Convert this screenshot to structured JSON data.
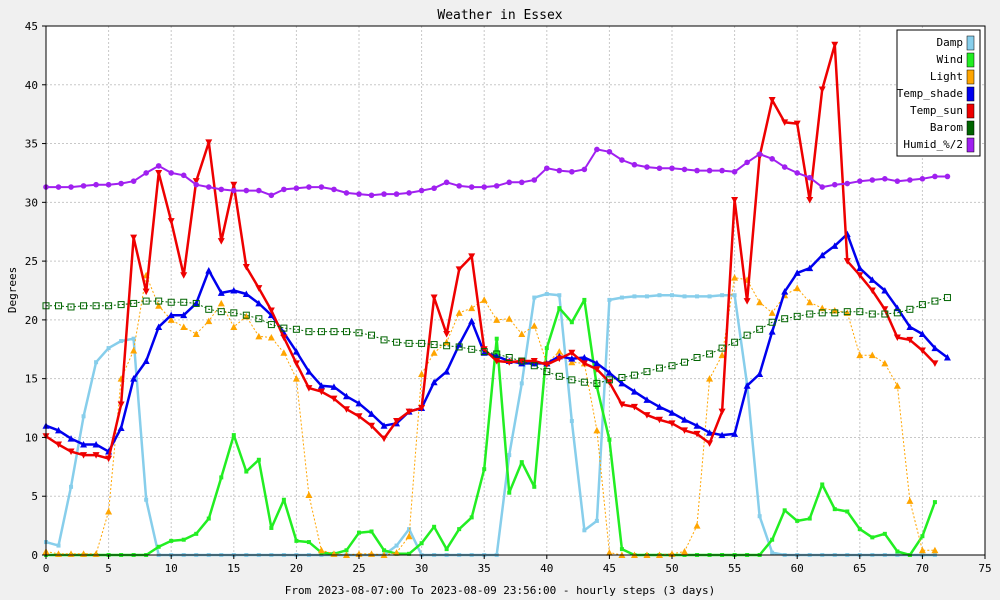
{
  "chart_data": {
    "type": "line",
    "title": "Weather in Essex",
    "xlabel": "From 2023-08-07:00 To 2023-08-09 23:56:00 - hourly steps (3 days)",
    "ylabel": "Degrees",
    "xlim": [
      0,
      75
    ],
    "ylim": [
      0,
      45
    ],
    "xticks": [
      0,
      5,
      10,
      15,
      20,
      25,
      30,
      35,
      40,
      45,
      50,
      55,
      60,
      65,
      70,
      75
    ],
    "yticks": [
      0,
      5,
      10,
      15,
      20,
      25,
      30,
      35,
      40,
      45
    ],
    "grid": true,
    "legend_position": "top-right",
    "series": [
      {
        "name": "Damp",
        "color": "#87ceeb",
        "marker": "square",
        "values": [
          1.1,
          0.8,
          5.8,
          11.8,
          16.4,
          17.6,
          18.2,
          18.4,
          4.7,
          0,
          0,
          0,
          0,
          0,
          0,
          0,
          0,
          0,
          0,
          0,
          0,
          0,
          0,
          0,
          0,
          0,
          0,
          0,
          0.8,
          2.2,
          0,
          0,
          0,
          0,
          0,
          0,
          0,
          8.5,
          14.6,
          21.9,
          22.2,
          22.1,
          11.4,
          2.1,
          2.9,
          21.7,
          21.9,
          22,
          22,
          22.1,
          22.1,
          22,
          22,
          22,
          22.1,
          22.1,
          14.5,
          3.3,
          0.2,
          0,
          0,
          0,
          0,
          0,
          0,
          0,
          0,
          0,
          0,
          0,
          0,
          0
        ]
      },
      {
        "name": "Wind",
        "color": "#22ee22",
        "marker": "square",
        "values": [
          0,
          0,
          0,
          0,
          0,
          0,
          0,
          0,
          0,
          0.7,
          1.2,
          1.3,
          1.8,
          3.1,
          6.6,
          10.2,
          7.1,
          8.1,
          2.3,
          4.7,
          1.2,
          1.1,
          0.2,
          0.1,
          0.4,
          1.9,
          2,
          0.4,
          0.1,
          0.1,
          1,
          2.4,
          0.5,
          2.2,
          3.2,
          7.3,
          18.4,
          5.3,
          7.9,
          5.8,
          17.6,
          21,
          19.8,
          21.7,
          14.3,
          9.8,
          0.5,
          0,
          0,
          0,
          0,
          0,
          0,
          0,
          0,
          0,
          0,
          0,
          1.3,
          3.8,
          2.9,
          3.1,
          6,
          3.9,
          3.7,
          2.2,
          1.5,
          1.8,
          0.3,
          0,
          1.6,
          4.5
        ]
      },
      {
        "name": "Light",
        "color": "#ffa500",
        "marker": "triangle",
        "values": [
          0.3,
          0.1,
          0.1,
          0.1,
          0.1,
          3.7,
          15,
          17.4,
          23.8,
          21.2,
          20,
          19.4,
          18.8,
          19.9,
          21.4,
          19.4,
          20.3,
          18.6,
          18.5,
          17.2,
          15,
          5.1,
          0.4,
          0.1,
          0,
          0.1,
          0.1,
          0,
          0.2,
          1.6,
          15.4,
          17.2,
          18.1,
          20.6,
          21,
          21.7,
          20,
          20.1,
          18.8,
          19.5,
          16.3,
          17.3,
          16.4,
          16.3,
          10.6,
          0.2,
          0,
          0,
          0,
          0,
          0.1,
          0.3,
          2.5,
          15,
          17,
          23.6,
          23.4,
          21.5,
          20.6,
          22.1,
          22.7,
          21.5,
          21,
          20.8,
          20.6,
          17,
          17,
          16.3,
          14.4,
          4.6,
          0.4,
          0.4
        ]
      },
      {
        "name": "Temp_shade",
        "color": "#0000ee",
        "marker": "triangle",
        "values": [
          11,
          10.6,
          9.9,
          9.4,
          9.4,
          8.8,
          10.8,
          15,
          16.5,
          19.4,
          20.4,
          20.4,
          21.4,
          24.2,
          22.3,
          22.5,
          22.2,
          21.4,
          20.4,
          18.9,
          17.3,
          15.6,
          14.4,
          14.3,
          13.5,
          12.9,
          12,
          11,
          11.2,
          12.2,
          12.5,
          14.7,
          15.6,
          17.9,
          19.9,
          17.2,
          16.9,
          16.5,
          16.3,
          16.3,
          16.3,
          16.9,
          16.7,
          16.8,
          16.3,
          15.5,
          14.6,
          13.9,
          13.2,
          12.6,
          12.1,
          11.5,
          11,
          10.4,
          10.2,
          10.3,
          14.4,
          15.4,
          19,
          22.4,
          24,
          24.4,
          25.5,
          26.3,
          27.3,
          24.4,
          23.4,
          22.5,
          21,
          19.4,
          18.8,
          17.6,
          16.8
        ]
      },
      {
        "name": "Temp_sun",
        "color": "#ee0000",
        "marker": "triangle-down",
        "values": [
          10.1,
          9.4,
          8.8,
          8.5,
          8.5,
          8.2,
          12.8,
          27,
          22.4,
          32.5,
          28.4,
          23.8,
          31.8,
          35.1,
          26.7,
          31.5,
          24.5,
          22.7,
          20.8,
          18.5,
          16.3,
          14.2,
          13.9,
          13.3,
          12.4,
          11.8,
          11,
          9.9,
          11.4,
          12.2,
          12.5,
          21.9,
          18.8,
          24.3,
          25.4,
          17.5,
          16.5,
          16.4,
          16.5,
          16.5,
          16.2,
          16.7,
          17.2,
          16.3,
          15.8,
          14.7,
          12.8,
          12.6,
          11.9,
          11.5,
          11.2,
          10.6,
          10.3,
          9.5,
          12.2,
          30.2,
          21.6,
          33.9,
          38.7,
          36.8,
          36.7,
          30.2,
          39.6,
          43.4,
          25,
          23.8,
          22.5,
          20.9,
          18.5,
          18.3,
          17.4,
          16.3
        ]
      },
      {
        "name": "Barom",
        "color": "#006400",
        "marker": "open-square",
        "values": [
          21.2,
          21.2,
          21.1,
          21.2,
          21.2,
          21.2,
          21.3,
          21.4,
          21.6,
          21.6,
          21.5,
          21.5,
          21.4,
          20.9,
          20.7,
          20.6,
          20.4,
          20.1,
          19.6,
          19.3,
          19.2,
          19,
          19,
          19,
          19,
          18.9,
          18.7,
          18.3,
          18.1,
          18,
          18,
          17.9,
          17.8,
          17.7,
          17.5,
          17.3,
          17.1,
          16.8,
          16.5,
          16.1,
          15.6,
          15.2,
          14.9,
          14.7,
          14.6,
          14.9,
          15.1,
          15.3,
          15.6,
          15.9,
          16.1,
          16.4,
          16.8,
          17.1,
          17.6,
          18.1,
          18.7,
          19.2,
          19.8,
          20.1,
          20.3,
          20.5,
          20.6,
          20.6,
          20.7,
          20.7,
          20.5,
          20.5,
          20.6,
          20.9,
          21.3,
          21.6,
          21.9
        ]
      },
      {
        "name": "Humid_%/2",
        "color": "#a020f0",
        "marker": "circle",
        "values": [
          31.3,
          31.3,
          31.3,
          31.4,
          31.5,
          31.5,
          31.6,
          31.8,
          32.5,
          33.1,
          32.5,
          32.3,
          31.5,
          31.3,
          31.1,
          31,
          31,
          31,
          30.6,
          31.1,
          31.2,
          31.3,
          31.3,
          31.1,
          30.8,
          30.7,
          30.6,
          30.7,
          30.7,
          30.8,
          31,
          31.2,
          31.7,
          31.4,
          31.3,
          31.3,
          31.4,
          31.7,
          31.7,
          31.9,
          32.9,
          32.7,
          32.6,
          32.8,
          34.5,
          34.3,
          33.6,
          33.2,
          33,
          32.9,
          32.9,
          32.8,
          32.7,
          32.7,
          32.7,
          32.6,
          33.4,
          34.1,
          33.7,
          33,
          32.5,
          32.1,
          31.3,
          31.5,
          31.6,
          31.8,
          31.9,
          32,
          31.8,
          31.9,
          32,
          32.2,
          32.2
        ]
      }
    ]
  }
}
